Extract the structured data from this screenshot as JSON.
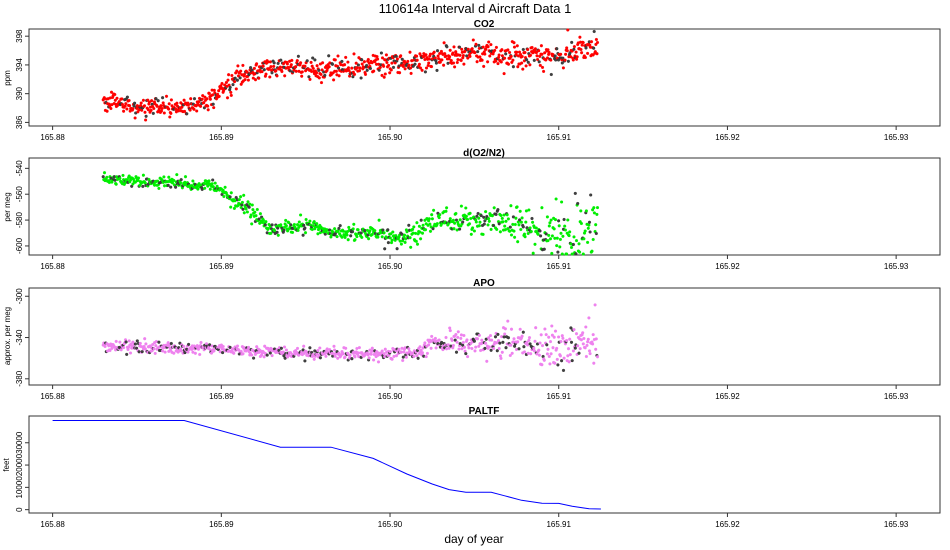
{
  "figure": {
    "title": "110614a   Interval d Aircraft Data 1",
    "xlabel": "day of year"
  },
  "colors": {
    "co2": "#ff0000",
    "o2n2": "#00ee00",
    "apo": "#ee82ee",
    "paltf": "#0000ff",
    "outline": "#333333"
  },
  "chart_data": [
    {
      "type": "scatter",
      "title": "CO2",
      "ylabel": "ppm",
      "xlim": [
        165.8786,
        165.9326
      ],
      "ylim": [
        385.5,
        399.0
      ],
      "xticks": [
        165.88,
        165.89,
        165.9,
        165.91,
        165.92,
        165.93
      ],
      "xtick_labels": [
        "165.88",
        "165.89",
        "165.90",
        "165.91",
        "165.92",
        "165.93"
      ],
      "yticks": [
        386,
        390,
        394,
        398
      ],
      "ytick_labels": [
        "386",
        "390",
        "394",
        "398"
      ],
      "x_range": [
        165.883,
        165.9123
      ],
      "trend": [
        [
          165.883,
          389.0
        ],
        [
          165.885,
          388.2
        ],
        [
          165.887,
          387.9
        ],
        [
          165.8885,
          388.3
        ],
        [
          165.8895,
          389.2
        ],
        [
          165.891,
          392.5
        ],
        [
          165.893,
          393.7
        ],
        [
          165.895,
          393.5
        ],
        [
          165.897,
          393.3
        ],
        [
          165.899,
          394.0
        ],
        [
          165.901,
          394.3
        ],
        [
          165.903,
          395.0
        ],
        [
          165.905,
          395.8
        ],
        [
          165.907,
          395.4
        ],
        [
          165.909,
          395.5
        ],
        [
          165.91,
          395.0
        ],
        [
          165.9115,
          396.3
        ],
        [
          165.9123,
          396.5
        ]
      ],
      "noise": [
        0.6,
        0.6,
        0.6,
        0.6,
        0.6,
        0.7,
        0.7,
        0.7,
        0.7,
        0.7,
        0.8,
        0.8,
        0.8,
        0.8,
        0.8,
        0.9,
        1.0,
        1.0
      ],
      "n_points": 900
    },
    {
      "type": "scatter",
      "title": "d(O2/N2)",
      "ylabel": "per meg",
      "xlim": [
        165.8786,
        165.9326
      ],
      "ylim": [
        -607,
        -532
      ],
      "yticks": [
        -540,
        -560,
        -580,
        -600
      ],
      "ytick_labels": [
        "-540",
        "-560",
        "-580",
        "-600"
      ],
      "xticks": [
        165.88,
        165.89,
        165.9,
        165.91,
        165.92,
        165.93
      ],
      "xtick_labels": [
        "165.88",
        "165.89",
        "165.90",
        "165.91",
        "165.92",
        "165.93"
      ],
      "x_range": [
        165.883,
        165.9123
      ],
      "trend": [
        [
          165.883,
          -548
        ],
        [
          165.885,
          -550
        ],
        [
          165.887,
          -551
        ],
        [
          165.889,
          -553
        ],
        [
          165.89,
          -556
        ],
        [
          165.8905,
          -564
        ],
        [
          165.8915,
          -570
        ],
        [
          165.893,
          -588
        ],
        [
          165.895,
          -584
        ],
        [
          165.897,
          -590
        ],
        [
          165.899,
          -590
        ],
        [
          165.901,
          -593
        ],
        [
          165.902,
          -586
        ],
        [
          165.903,
          -580
        ],
        [
          165.905,
          -581
        ],
        [
          165.907,
          -582
        ],
        [
          165.909,
          -588
        ],
        [
          165.911,
          -592
        ],
        [
          165.9123,
          -585
        ]
      ],
      "noise": [
        2,
        2,
        2,
        2,
        2,
        3,
        3,
        3,
        2.5,
        2.5,
        3,
        4,
        4,
        4,
        5,
        7,
        9,
        10,
        10
      ],
      "n_points": 800
    },
    {
      "type": "scatter",
      "title": "APO",
      "ylabel": "approx. per meg",
      "xlim": [
        165.8786,
        165.9326
      ],
      "ylim": [
        -386,
        -292
      ],
      "yticks": [
        -300,
        -340,
        -380
      ],
      "ytick_labels": [
        "-300",
        "-340",
        "-380"
      ],
      "xticks": [
        165.88,
        165.89,
        165.9,
        165.91,
        165.92,
        165.93
      ],
      "xtick_labels": [
        "165.88",
        "165.89",
        "165.90",
        "165.91",
        "165.92",
        "165.93"
      ],
      "x_range": [
        165.883,
        165.9123
      ],
      "trend": [
        [
          165.883,
          -348
        ],
        [
          165.886,
          -350
        ],
        [
          165.889,
          -350
        ],
        [
          165.891,
          -352
        ],
        [
          165.893,
          -354
        ],
        [
          165.896,
          -355
        ],
        [
          165.899,
          -356
        ],
        [
          165.901,
          -355
        ],
        [
          165.902,
          -352
        ],
        [
          165.9025,
          -346
        ],
        [
          165.904,
          -345
        ],
        [
          165.906,
          -346
        ],
        [
          165.908,
          -348
        ],
        [
          165.91,
          -350
        ],
        [
          165.9123,
          -345
        ]
      ],
      "noise": [
        3,
        3,
        3,
        3,
        3,
        3,
        3,
        3,
        3,
        5,
        5,
        6,
        8,
        10,
        12
      ],
      "n_points": 800
    },
    {
      "type": "line",
      "title": "PALTF",
      "ylabel": "feet",
      "xlim": [
        165.8786,
        165.9326
      ],
      "ylim": [
        -1500,
        42000
      ],
      "yticks": [
        0,
        10000,
        20000,
        30000
      ],
      "ytick_labels": [
        "0",
        "10000",
        "20000",
        "30000"
      ],
      "xticks": [
        165.88,
        165.89,
        165.9,
        165.91,
        165.92,
        165.93
      ],
      "xtick_labels": [
        "165.88",
        "165.89",
        "165.90",
        "165.91",
        "165.92",
        "165.93"
      ],
      "x": [
        165.88,
        165.8878,
        165.8935,
        165.8965,
        165.899,
        165.901,
        165.9025,
        165.9035,
        165.9045,
        165.906,
        165.9068,
        165.9078,
        165.909,
        165.91,
        165.9108,
        165.9118,
        165.9125
      ],
      "y": [
        40000,
        40000,
        28000,
        28000,
        23000,
        16000,
        11500,
        9000,
        7800,
        7800,
        6200,
        4200,
        2900,
        2800,
        1500,
        400,
        300
      ]
    }
  ]
}
